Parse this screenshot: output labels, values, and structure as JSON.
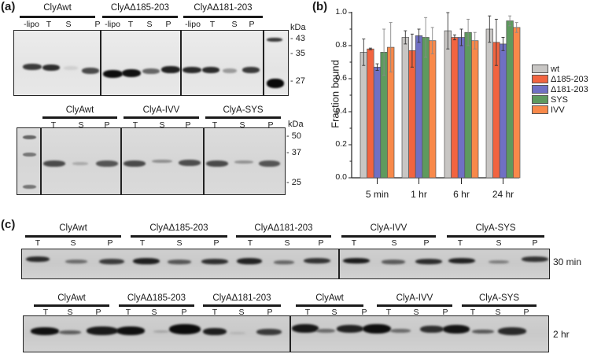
{
  "panels": {
    "a": {
      "label": "(a)",
      "top_gel": {
        "groups": [
          {
            "title": "ClyAwt",
            "lanes": [
              "-lipo",
              "T",
              "S",
              "P"
            ]
          },
          {
            "title": "ClyAΔ185-203",
            "lanes": [
              "-lipo",
              "T",
              "S",
              "P"
            ]
          },
          {
            "title": "ClyAΔ181-203",
            "lanes": [
              "-lipo",
              "T",
              "S",
              "P"
            ]
          }
        ],
        "kda_label": "kDa",
        "markers": [
          "43",
          "35",
          "27"
        ]
      },
      "bottom_gel": {
        "groups": [
          {
            "title": "ClyAwt",
            "lanes": [
              "T",
              "S",
              "P"
            ]
          },
          {
            "title": "ClyA-IVV",
            "lanes": [
              "T",
              "S",
              "P"
            ]
          },
          {
            "title": "ClyA-SYS",
            "lanes": [
              "T",
              "S",
              "P"
            ]
          }
        ],
        "kda_label": "kDa",
        "markers": [
          "50",
          "37",
          "25"
        ]
      }
    },
    "b": {
      "label": "(b)"
    },
    "c": {
      "label": "(c)",
      "gel_30min": {
        "time": "30 min",
        "groups": [
          {
            "title": "ClyAwt",
            "lanes": [
              "T",
              "S",
              "P"
            ]
          },
          {
            "title": "ClyAΔ185-203",
            "lanes": [
              "T",
              "S",
              "P"
            ]
          },
          {
            "title": "ClyAΔ181-203",
            "lanes": [
              "T",
              "S",
              "P"
            ]
          },
          {
            "title": "ClyA-IVV",
            "lanes": [
              "T",
              "S",
              "P"
            ]
          },
          {
            "title": "ClyA-SYS",
            "lanes": [
              "T",
              "S",
              "P"
            ]
          }
        ]
      },
      "gel_2hr": {
        "time": "2 hr",
        "groups": [
          {
            "title": "ClyAwt",
            "lanes": [
              "T",
              "S",
              "P"
            ]
          },
          {
            "title": "ClyAΔ185-203",
            "lanes": [
              "T",
              "S",
              "P"
            ]
          },
          {
            "title": "ClyAΔ181-203",
            "lanes": [
              "T",
              "S",
              "P"
            ]
          },
          {
            "title": "ClyAwt",
            "lanes": [
              "T",
              "S",
              "P"
            ]
          },
          {
            "title": "ClyA-IVV",
            "lanes": [
              "T",
              "S",
              "P"
            ]
          },
          {
            "title": "ClyA-SYS",
            "lanes": [
              "T",
              "S",
              "P"
            ]
          }
        ]
      }
    }
  },
  "chart_data": {
    "type": "bar",
    "title": "",
    "xlabel": "",
    "ylabel": "Fraction bound",
    "ylim": [
      0.0,
      1.0
    ],
    "yticks": [
      "0.0",
      "0.2",
      "0.4",
      "0.6",
      "0.8",
      "1.0"
    ],
    "grid": false,
    "legend_position": "right",
    "categories": [
      "5 min",
      "1 hr",
      "6 hr",
      "24 hr"
    ],
    "series": [
      {
        "name": "wt",
        "color": "#c8c6c4",
        "values": [
          0.76,
          0.85,
          0.89,
          0.9
        ],
        "errors": [
          0.08,
          0.04,
          0.11,
          0.08
        ]
      },
      {
        "name": "Δ185-203",
        "color": "#f26440",
        "values": [
          0.78,
          0.77,
          0.85,
          0.82
        ],
        "errors": [
          0.005,
          0.1,
          0.015,
          0.14
        ]
      },
      {
        "name": "Δ181-203",
        "color": "#7070c4",
        "values": [
          0.67,
          0.86,
          0.85,
          0.81
        ],
        "errors": [
          0.02,
          0.04,
          0.05,
          0.04
        ]
      },
      {
        "name": "SYS",
        "color": "#5e9a5e",
        "values": [
          0.76,
          0.85,
          0.88,
          0.95
        ],
        "errors": [
          0.14,
          0.12,
          0.08,
          0.03
        ]
      },
      {
        "name": "IVV",
        "color": "#f8894a",
        "values": [
          0.79,
          0.83,
          0.83,
          0.91
        ],
        "errors": [
          0.15,
          0.08,
          0.05,
          0.03
        ]
      }
    ]
  }
}
